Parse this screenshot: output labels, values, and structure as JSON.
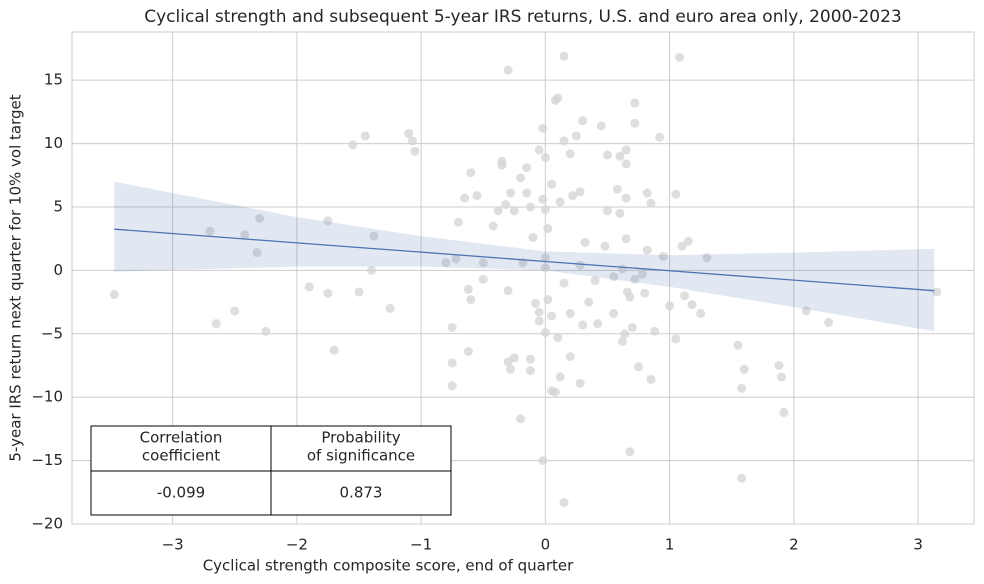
{
  "chart_data": {
    "type": "scatter",
    "title": "Cyclical strength and subsequent 5-year IRS returns, U.S. and euro area only, 2000-2023",
    "x_label": "Cyclical strength composite score, end of quarter",
    "y_label": "5-year IRS return next quarter for 10% vol target",
    "xlim": [
      -3.81,
      3.45
    ],
    "ylim": [
      -20,
      18.8
    ],
    "xticks": [
      {
        "value": -3,
        "label": "−3"
      },
      {
        "value": -2,
        "label": "−2"
      },
      {
        "value": -1,
        "label": "−1"
      },
      0,
      1,
      2,
      3
    ],
    "yticks": [
      {
        "value": -20,
        "label": "−20"
      },
      {
        "value": -15,
        "label": "−15"
      },
      {
        "value": -10,
        "label": "−10"
      },
      {
        "value": -5,
        "label": "−5"
      },
      0,
      5,
      10,
      15
    ],
    "grid": true,
    "points": {
      "color": "#d3d3d3",
      "x": [
        -3.47,
        -2.7,
        -2.65,
        -2.5,
        -2.42,
        -2.3,
        -2.32,
        -2.25,
        -1.75,
        -1.9,
        -1.75,
        -1.7,
        -1.55,
        -1.45,
        -1.5,
        -1.4,
        -1.38,
        -1.25,
        -1.1,
        -1.07,
        -1.05,
        -0.8,
        -0.75,
        -0.72,
        -0.7,
        -0.65,
        -0.6,
        -0.55,
        -0.62,
        -0.6,
        -0.62,
        -0.75,
        -0.75,
        -0.5,
        -0.5,
        -0.42,
        -0.38,
        -0.35,
        -0.35,
        -0.32,
        -0.28,
        -0.3,
        -0.3,
        -0.28,
        -0.25,
        -0.3,
        -0.25,
        -0.2,
        -0.15,
        -0.15,
        -0.12,
        -0.1,
        -0.08,
        -0.05,
        -0.18,
        -0.2,
        -0.12,
        -0.12,
        -0.05,
        -0.02,
        0,
        0.02,
        0,
        0,
        -0.05,
        0,
        0.02,
        0.05,
        -0.02,
        0.05,
        0.08,
        0,
        -0.02,
        0.05,
        0.08,
        0.1,
        0.12,
        0.15,
        0.15,
        0.12,
        0.1,
        0.2,
        0.15,
        0.2,
        0.2,
        0.15,
        0.22,
        0.25,
        0.3,
        0.28,
        0.28,
        0.3,
        0.28,
        0.32,
        0.35,
        0.4,
        0.42,
        0.45,
        0.48,
        0.5,
        0.5,
        0.55,
        0.55,
        0.58,
        0.6,
        0.6,
        0.62,
        0.62,
        0.64,
        0.65,
        0.65,
        0.65,
        0.65,
        0.68,
        0.66,
        0.7,
        0.68,
        0.72,
        0.75,
        0.72,
        0.72,
        0.78,
        0.8,
        0.82,
        0.85,
        0.82,
        0.85,
        0.88,
        0.92,
        0.95,
        1.0,
        1.05,
        1.05,
        1.08,
        1.1,
        1.15,
        1.12,
        1.18,
        1.3,
        1.25,
        1.55,
        1.58,
        1.6,
        1.58,
        1.88,
        1.9,
        1.92,
        2.1,
        2.28,
        3.15
      ],
      "y": [
        -1.9,
        3.1,
        -4.2,
        -3.2,
        2.8,
        4.1,
        1.4,
        -4.8,
        3.9,
        -1.3,
        -1.8,
        -6.3,
        9.9,
        10.6,
        -1.7,
        0,
        2.7,
        -3,
        10.8,
        10.2,
        9.4,
        0.6,
        -4.5,
        0.9,
        3.8,
        5.7,
        7.7,
        5.9,
        -1.5,
        -2.3,
        -6.4,
        -7.3,
        -9.1,
        -0.7,
        0.6,
        3.5,
        4.7,
        8.6,
        8.3,
        5.2,
        6.1,
        -1.6,
        -7.2,
        -7.8,
        -6.9,
        15.8,
        4.7,
        7.3,
        6.1,
        8.1,
        5,
        2.6,
        -2.6,
        -3.3,
        0.6,
        -11.7,
        -7,
        -7.9,
        9.5,
        5.6,
        4.8,
        3.3,
        1,
        0.2,
        -4,
        -4.9,
        -2.3,
        -3.6,
        -15,
        -9.5,
        -9.6,
        8.9,
        11.2,
        6.8,
        13.4,
        13.6,
        5.4,
        10.2,
        -1,
        -8.4,
        -5.3,
        -3.4,
        16.9,
        9.2,
        -6.8,
        -18.3,
        5.9,
        10.6,
        11.8,
        6.2,
        0.4,
        -4.3,
        -8.9,
        2.2,
        -2.5,
        -0.8,
        -4.2,
        11.4,
        1.9,
        9.1,
        4.7,
        -0.5,
        -3.4,
        6.4,
        9,
        4.5,
        0.1,
        -5.6,
        -5,
        9.5,
        8.4,
        5.7,
        2.5,
        -2.1,
        -1.7,
        -4.5,
        -14.3,
        -0.7,
        -7.6,
        11.6,
        13.2,
        -0.3,
        -1.8,
        1.6,
        -8.6,
        6.1,
        5.3,
        -4.8,
        10.5,
        1.1,
        -2.8,
        6,
        -5.4,
        16.8,
        1.9,
        2.3,
        -2,
        -2.7,
        1,
        -3.4,
        -5.9,
        -9.3,
        -7.8,
        -16.4,
        -7.5,
        -8.4,
        -11.2,
        -3.2,
        -4.1,
        -1.7
      ]
    },
    "fit": {
      "color": "#4c72b0",
      "x": [
        -3.47,
        -2,
        -1,
        0,
        1,
        2,
        3.13
      ],
      "y": [
        3.25,
        2.17,
        1.44,
        0.7,
        -0.03,
        -0.77,
        -1.6
      ],
      "upper": [
        7.0,
        4.2,
        2.7,
        1.5,
        1.2,
        1.4,
        1.7
      ],
      "lower": [
        -0.1,
        0.3,
        0.3,
        0.0,
        -1.3,
        -2.9,
        -4.8
      ]
    },
    "table": {
      "headers": [
        [
          "Correlation",
          "coefficient"
        ],
        [
          "Probability",
          "of significance"
        ]
      ],
      "values": [
        -0.099,
        0.873
      ]
    }
  }
}
